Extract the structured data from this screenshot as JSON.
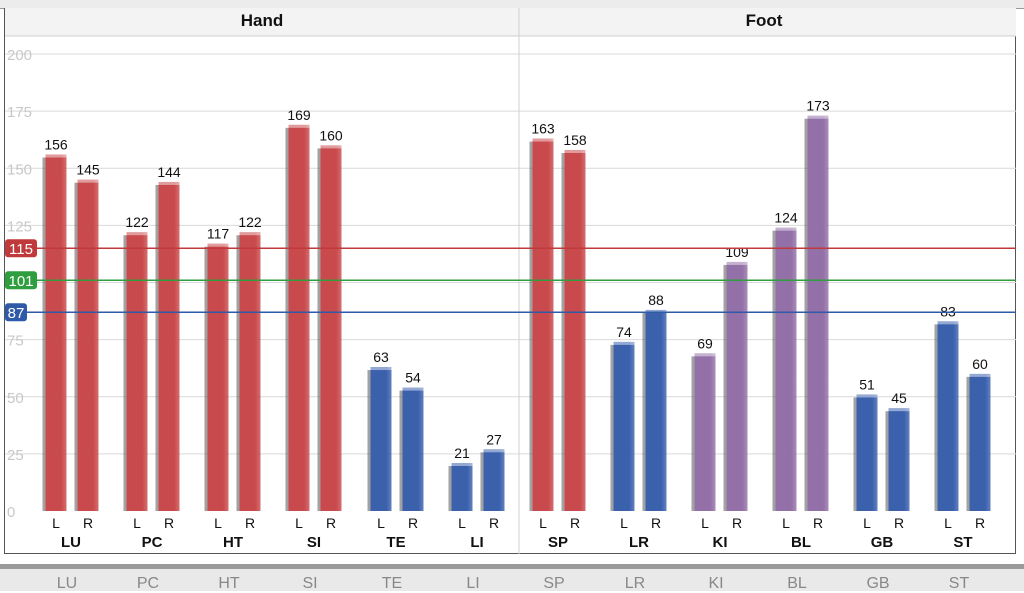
{
  "chart_data": {
    "type": "bar",
    "groups": [
      {
        "name": "Hand",
        "channels": [
          {
            "name": "LU",
            "L": 156,
            "R": 145,
            "color": "red"
          },
          {
            "name": "PC",
            "L": 122,
            "R": 144,
            "color": "red"
          },
          {
            "name": "HT",
            "L": 117,
            "R": 122,
            "color": "red"
          },
          {
            "name": "SI",
            "L": 169,
            "R": 160,
            "color": "red"
          },
          {
            "name": "TE",
            "L": 63,
            "R": 54,
            "color": "blue"
          },
          {
            "name": "LI",
            "L": 21,
            "R": 27,
            "color": "blue"
          }
        ]
      },
      {
        "name": "Foot",
        "channels": [
          {
            "name": "SP",
            "L": 163,
            "R": 158,
            "color": "red"
          },
          {
            "name": "LR",
            "L": 74,
            "R": 88,
            "color": "blue"
          },
          {
            "name": "KI",
            "L": 69,
            "R": 109,
            "color": "purple"
          },
          {
            "name": "BL",
            "L": 124,
            "R": 173,
            "color": "purple"
          },
          {
            "name": "GB",
            "L": 51,
            "R": 45,
            "color": "blue"
          },
          {
            "name": "ST",
            "L": 83,
            "R": 60,
            "color": "blue"
          }
        ]
      }
    ],
    "side_labels": [
      "L",
      "R"
    ],
    "yticks": [
      0,
      25,
      50,
      75,
      100,
      125,
      150,
      175,
      200
    ],
    "ylim": [
      0,
      200
    ],
    "reference_lines": [
      {
        "value": 115,
        "label": "115",
        "color": "#c0393b"
      },
      {
        "value": 101,
        "label": "101",
        "color": "#2e9e3e"
      },
      {
        "value": 87,
        "label": "87",
        "color": "#2f5aa8"
      }
    ],
    "colors": {
      "red": "#c94a4c",
      "blue": "#3b61ad",
      "purple": "#9470a8"
    },
    "grid": true
  },
  "bottom_tabs": [
    "LU",
    "PC",
    "HT",
    "SI",
    "TE",
    "LI",
    "SP",
    "LR",
    "KI",
    "BL",
    "GB",
    "ST"
  ]
}
